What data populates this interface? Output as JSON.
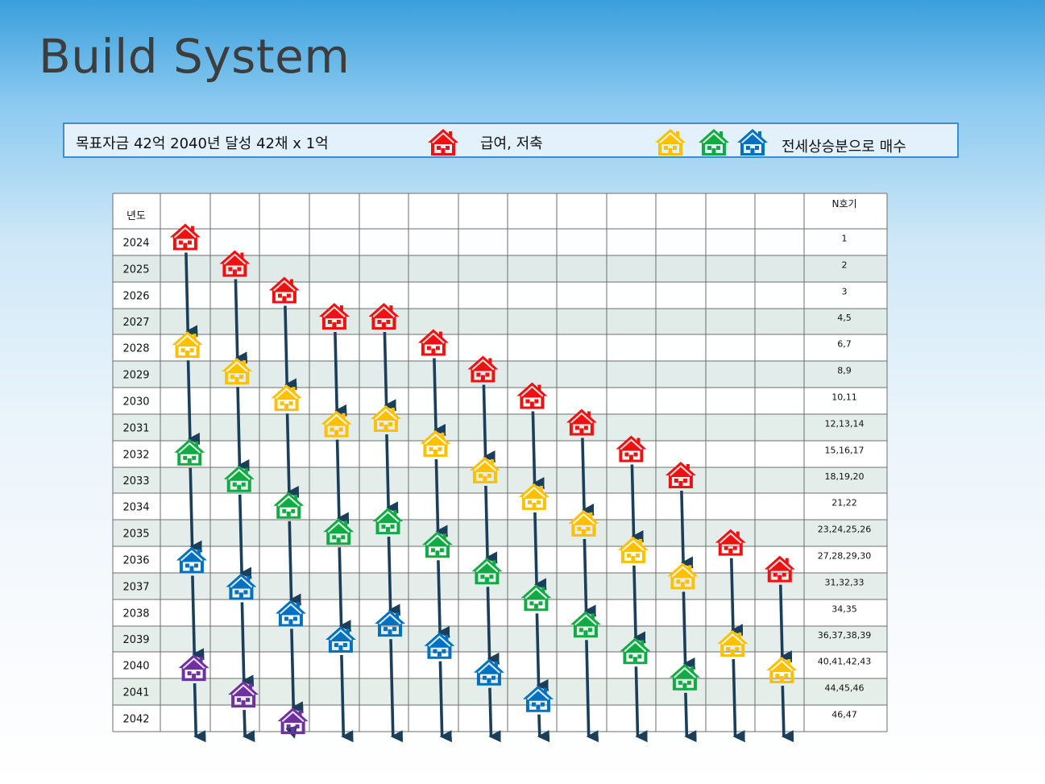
{
  "title": "Build System",
  "legend": {
    "goal_text": "목표자금 42억  2040년 달성  42채 x 1억",
    "red_label": "급여, 저축",
    "equity_label": "전세상승분으로 매수",
    "red_icon": "house-icon-red",
    "equity_icons": [
      "house-icon-yellow",
      "house-icon-green",
      "house-icon-blue"
    ]
  },
  "colors": {
    "red": "#ee1111",
    "yellow": "#ffc000",
    "green": "#11aa44",
    "blue": "#0070c0",
    "purple": "#7030a0",
    "arrow": "#1b3f5a"
  },
  "table": {
    "year_header": "년도",
    "n_header": "N호기",
    "years": [
      "2024",
      "2025",
      "2026",
      "2027",
      "2028",
      "2029",
      "2030",
      "2031",
      "2032",
      "2033",
      "2034",
      "2035",
      "2036",
      "2037",
      "2038",
      "2039",
      "2040",
      "2041",
      "2042"
    ],
    "n_values": [
      "1",
      "2",
      "3",
      "4,5",
      "6,7",
      "8,9",
      "10,11",
      "12,13,14",
      "15,16,17",
      "18,19,20",
      "21,22",
      "23,24,25,26",
      "27,28,29,30",
      "31,32,33",
      "34,35",
      "36,37,38,39",
      "40,41,42,43",
      "44,45,46",
      "46,47"
    ]
  },
  "columns": [
    {
      "start": "2024",
      "stages": [
        "red",
        "yellow",
        "green",
        "blue",
        "purple"
      ]
    },
    {
      "start": "2025",
      "stages": [
        "red",
        "yellow",
        "green",
        "blue",
        "purple"
      ]
    },
    {
      "start": "2026",
      "stages": [
        "red",
        "yellow",
        "green",
        "blue",
        "purple"
      ]
    },
    {
      "start": "2027",
      "stages": [
        "red",
        "yellow",
        "green",
        "blue"
      ]
    },
    {
      "start": "2027",
      "stages": [
        "red",
        "yellow",
        "green",
        "blue"
      ]
    },
    {
      "start": "2028",
      "stages": [
        "red",
        "yellow",
        "green",
        "blue"
      ]
    },
    {
      "start": "2029",
      "stages": [
        "red",
        "yellow",
        "green",
        "blue"
      ]
    },
    {
      "start": "2030",
      "stages": [
        "red",
        "yellow",
        "green",
        "blue"
      ]
    },
    {
      "start": "2031",
      "stages": [
        "red",
        "yellow",
        "green"
      ]
    },
    {
      "start": "2032",
      "stages": [
        "red",
        "yellow",
        "green"
      ]
    },
    {
      "start": "2033",
      "stages": [
        "red",
        "yellow",
        "green"
      ]
    },
    {
      "start": "2035",
      "stages": [
        "red",
        "yellow"
      ]
    },
    {
      "start": "2036",
      "stages": [
        "red",
        "yellow"
      ]
    }
  ]
}
